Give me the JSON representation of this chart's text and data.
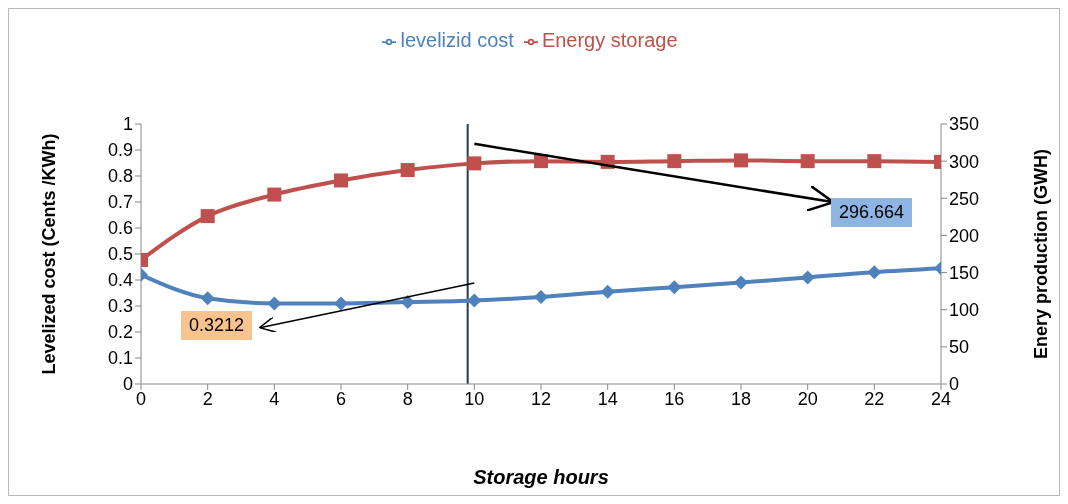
{
  "chart_data": {
    "type": "line",
    "xlabel": "Storage hours",
    "ylabel": "Levelized cost (Cents /KWh)",
    "y2label": "Enery production (GWH)",
    "x": [
      0,
      2,
      4,
      6,
      8,
      10,
      12,
      14,
      16,
      18,
      20,
      22,
      24
    ],
    "series": [
      {
        "name": "levelizid cost",
        "color": "#4f81bd",
        "marker": "diamond",
        "values": [
          0.42,
          0.33,
          0.31,
          0.31,
          0.315,
          0.3212,
          0.335,
          0.355,
          0.372,
          0.39,
          0.41,
          0.43,
          0.445
        ]
      },
      {
        "name": "Energy storage",
        "color": "#c0504d",
        "marker": "square",
        "axis": "y2",
        "values": [
          167,
          226,
          255,
          274,
          288,
          297,
          300,
          299,
          300,
          301,
          300,
          300,
          299
        ]
      }
    ],
    "xlim": [
      0,
      24
    ],
    "xticks": [
      0,
      2,
      4,
      6,
      8,
      10,
      12,
      14,
      16,
      18,
      20,
      22,
      24
    ],
    "ylim": [
      0,
      1
    ],
    "yticks": [
      0,
      0.1,
      0.2,
      0.3,
      0.4,
      0.5,
      0.6,
      0.7,
      0.8,
      0.9,
      1
    ],
    "y2lim": [
      0,
      350
    ],
    "y2ticks": [
      0,
      50,
      100,
      150,
      200,
      250,
      300,
      350
    ],
    "ref_lines": [
      {
        "axis": "x",
        "value": 9.8,
        "color": "#1f3b57"
      }
    ],
    "annotations": [
      "0.3212",
      "296.664"
    ],
    "grid": false,
    "legend": "top",
    "line_style": "solid"
  }
}
